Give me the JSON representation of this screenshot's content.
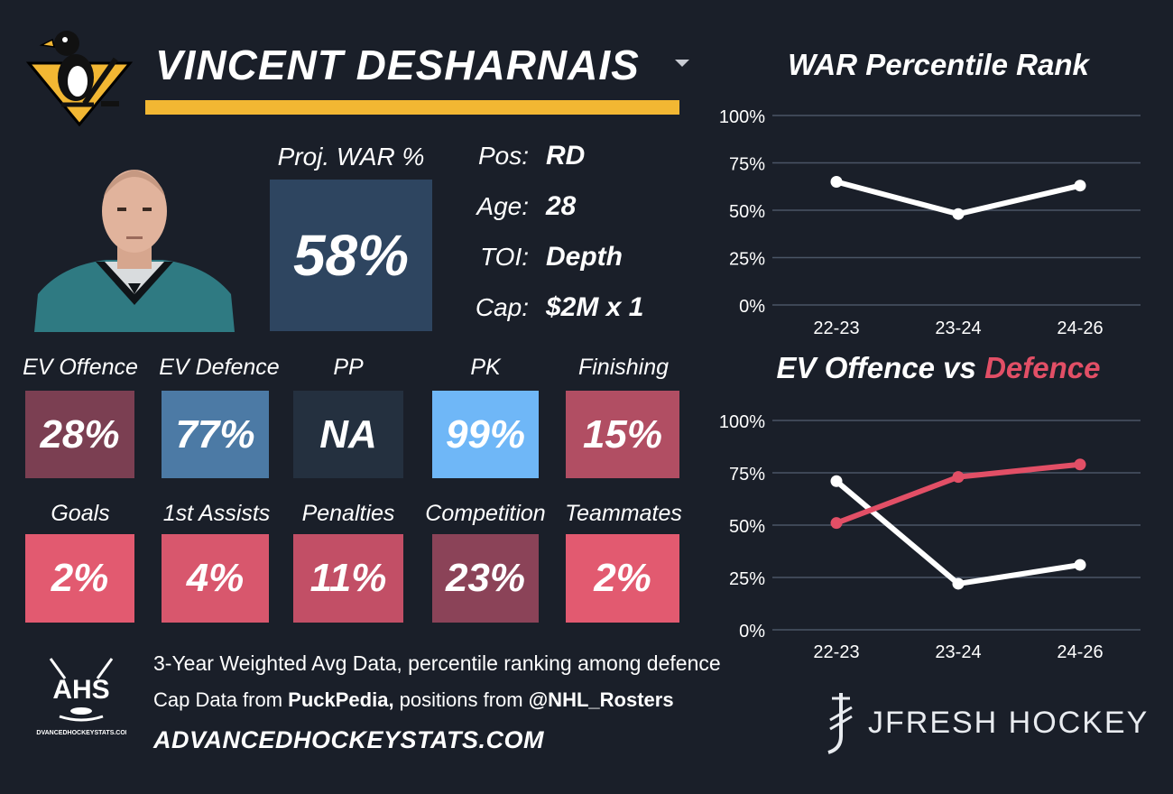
{
  "header": {
    "player_name": "VINCENT DESHARNAIS",
    "accent_color": "#f2b733"
  },
  "projection": {
    "label": "Proj. WAR %",
    "value": "58%"
  },
  "info": [
    {
      "key": "Pos:",
      "value": "RD"
    },
    {
      "key": "Age:",
      "value": "28"
    },
    {
      "key": "TOI:",
      "value": "Depth"
    },
    {
      "key": "Cap:",
      "value": "$2M x 1"
    }
  ],
  "stats": [
    {
      "label": "EV Offence",
      "value": "28%",
      "color": "#7b3f52"
    },
    {
      "label": "EV Defence",
      "value": "77%",
      "color": "#4c7aa5"
    },
    {
      "label": "PP",
      "value": "NA",
      "color": "#24303f"
    },
    {
      "label": "PK",
      "value": "99%",
      "color": "#6fb7f7"
    },
    {
      "label": "Finishing",
      "value": "15%",
      "color": "#b14e63"
    },
    {
      "label": "Goals",
      "value": "2%",
      "color": "#e25a70"
    },
    {
      "label": "1st Assists",
      "value": "4%",
      "color": "#d8576d"
    },
    {
      "label": "Penalties",
      "value": "11%",
      "color": "#c24f66"
    },
    {
      "label": "Competition",
      "value": "23%",
      "color": "#8b4358"
    },
    {
      "label": "Teammates",
      "value": "2%",
      "color": "#e25a70"
    }
  ],
  "footer": {
    "line1": "3-Year Weighted Avg Data, percentile ranking among defence",
    "line2_prefix": "Cap Data from ",
    "line2_source": "PuckPedia,",
    "line2_middle": " positions from ",
    "line2_handle": "@NHL_Rosters",
    "line3": "ADVANCEDHOCKEYSTATS.COM",
    "ahs_logo_text": "AHS",
    "ahs_logo_subtext": "ADVANCEDHOCKEYSTATS.COM",
    "brand": "JFRESH HOCKEY"
  },
  "icons": {
    "team_logo": "penguins-logo-icon",
    "ahs": "ahs-logo-icon",
    "brand": "jfresh-logo-icon",
    "dropdown": "caret-down-icon"
  },
  "chart_data": [
    {
      "type": "line",
      "title": "WAR Percentile Rank",
      "categories": [
        "22-23",
        "23-24",
        "24-26"
      ],
      "series": [
        {
          "values": [
            65,
            48,
            63
          ],
          "color": "#ffffff"
        }
      ],
      "ylim": [
        0,
        100
      ],
      "yticks": [
        "0%",
        "25%",
        "50%",
        "75%",
        "100%"
      ],
      "grid": true
    },
    {
      "type": "line",
      "title": "EV Offence vs Defence",
      "title_parts": {
        "a": "EV Offence",
        "joiner": " vs ",
        "b": "Defence",
        "b_color": "#e24f66"
      },
      "categories": [
        "22-23",
        "23-24",
        "24-26"
      ],
      "series": [
        {
          "values": [
            71,
            22,
            31
          ],
          "color": "#ffffff"
        },
        {
          "values": [
            51,
            73,
            79
          ],
          "color": "#e24f66"
        }
      ],
      "ylim": [
        0,
        100
      ],
      "yticks": [
        "0%",
        "25%",
        "50%",
        "75%",
        "100%"
      ],
      "grid": true
    }
  ]
}
